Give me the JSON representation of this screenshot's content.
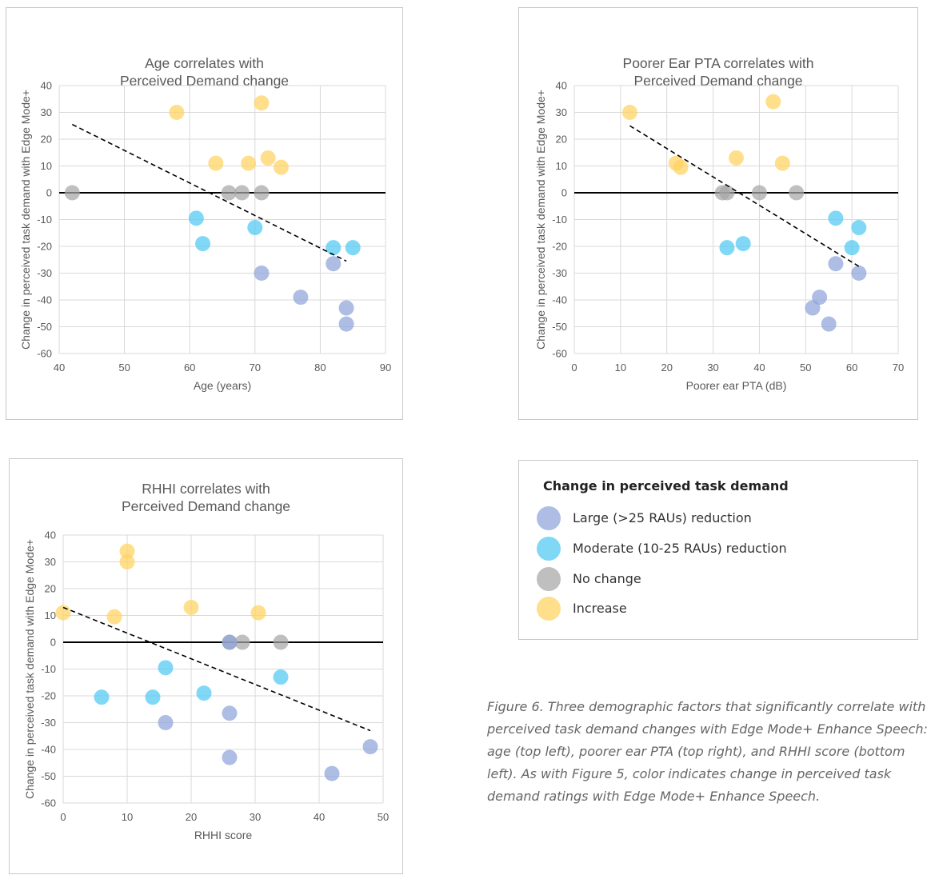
{
  "colors": {
    "large_reduction": "#8EA3D9",
    "moderate_reduction": "#4FC9F2",
    "no_change": "#A6A6A6",
    "increase": "#FFD25F"
  },
  "legend": {
    "title": "Change in perceived task demand",
    "items": [
      {
        "label": "Large (>25 RAUs) reduction",
        "color": "#8EA3D9"
      },
      {
        "label": "Moderate (10-25 RAUs) reduction",
        "color": "#4FC9F2"
      },
      {
        "label": "No change",
        "color": "#A6A6A6"
      },
      {
        "label": "Increase",
        "color": "#FFD25F"
      }
    ]
  },
  "caption": "Figure 6. Three demographic factors that significantly correlate with perceived task demand changes with Edge Mode+ Enhance Speech: age (top left), poorer ear PTA (top right), and RHHI score (bottom left). As with Figure 5, color indicates change in perceived task demand ratings with Edge Mode+ Enhance Speech.",
  "chart_data": [
    {
      "type": "scatter",
      "title_line1": "Age correlates with",
      "title_line2": "Perceived Demand change",
      "xlabel": "Age (years)",
      "ylabel": "Change in perceived task demand with Edge Mode+",
      "xlim": [
        40,
        90
      ],
      "ylim": [
        -60,
        40
      ],
      "xticks": [
        "40",
        "50",
        "60",
        "70",
        "80",
        "90"
      ],
      "yticks": [
        "40",
        "30",
        "20",
        "10",
        "0",
        "-10",
        "-20",
        "-30",
        "-40",
        "-50",
        "-60"
      ],
      "grid": true,
      "zero_line": true,
      "trendline": {
        "x": [
          42,
          84
        ],
        "y": [
          25.5,
          -25.5
        ]
      },
      "series": [
        {
          "category": "increase",
          "x": [
            58,
            71,
            64,
            69,
            72,
            74
          ],
          "y": [
            30,
            33.5,
            11,
            11,
            13,
            9.5
          ]
        },
        {
          "category": "no_change",
          "x": [
            42,
            66,
            68,
            71
          ],
          "y": [
            0,
            0,
            0,
            0
          ]
        },
        {
          "category": "moderate_reduction",
          "x": [
            61,
            62,
            70,
            82,
            85
          ],
          "y": [
            -9.5,
            -19,
            -13,
            -20.5,
            -20.5
          ]
        },
        {
          "category": "large_reduction",
          "x": [
            71,
            77,
            82,
            84,
            84
          ],
          "y": [
            -30,
            -39,
            -26.5,
            -43,
            -49
          ]
        }
      ]
    },
    {
      "type": "scatter",
      "title_line1": "Poorer Ear PTA correlates with",
      "title_line2": "Perceived Demand change",
      "xlabel": "Poorer ear PTA (dB)",
      "ylabel": "Change in perceived task demand with Edge Mode+",
      "xlim": [
        0,
        70
      ],
      "ylim": [
        -60,
        40
      ],
      "xticks": [
        "0",
        "10",
        "20",
        "30",
        "40",
        "50",
        "60",
        "70"
      ],
      "yticks": [
        "40",
        "30",
        "20",
        "10",
        "0",
        "-10",
        "-20",
        "-30",
        "-40",
        "-50",
        "-60"
      ],
      "grid": true,
      "zero_line": true,
      "trendline": {
        "x": [
          12,
          62
        ],
        "y": [
          25,
          -28
        ]
      },
      "series": [
        {
          "category": "increase",
          "x": [
            12,
            22,
            23,
            35,
            43,
            45
          ],
          "y": [
            30,
            11,
            9.5,
            13,
            34,
            11
          ]
        },
        {
          "category": "no_change",
          "x": [
            32,
            33,
            40,
            48
          ],
          "y": [
            0,
            0,
            0,
            0
          ]
        },
        {
          "category": "moderate_reduction",
          "x": [
            33,
            36.5,
            56.5,
            60,
            61.5
          ],
          "y": [
            -20.5,
            -19,
            -9.5,
            -20.5,
            -13
          ]
        },
        {
          "category": "large_reduction",
          "x": [
            51.5,
            53,
            55,
            56.5,
            61.5
          ],
          "y": [
            -43,
            -39,
            -49,
            -26.5,
            -30
          ]
        }
      ]
    },
    {
      "type": "scatter",
      "title_line1": "RHHI correlates with",
      "title_line2": "Perceived Demand change",
      "xlabel": "RHHI score",
      "ylabel": "Change in perceived task demand with Edge Mode+",
      "xlim": [
        0,
        50
      ],
      "ylim": [
        -60,
        40
      ],
      "xticks": [
        "0",
        "10",
        "20",
        "30",
        "40",
        "50"
      ],
      "yticks": [
        "40",
        "30",
        "20",
        "10",
        "0",
        "-10",
        "-20",
        "-30",
        "-40",
        "-50",
        "-60"
      ],
      "grid": true,
      "zero_line": true,
      "trendline": {
        "x": [
          0,
          48
        ],
        "y": [
          13,
          -33
        ]
      },
      "series": [
        {
          "category": "increase",
          "x": [
            0,
            8,
            10,
            10,
            20,
            30.5
          ],
          "y": [
            11,
            9.5,
            30,
            34,
            13,
            11
          ]
        },
        {
          "category": "no_change",
          "x": [
            26,
            28,
            34
          ],
          "y": [
            0,
            0,
            0
          ]
        },
        {
          "category": "moderate_reduction",
          "x": [
            6,
            14,
            16,
            22,
            34
          ],
          "y": [
            -20.5,
            -20.5,
            -9.5,
            -19,
            -13
          ]
        },
        {
          "category": "large_reduction",
          "x": [
            16,
            26,
            26,
            26,
            42,
            48
          ],
          "y": [
            -30,
            -26.5,
            -43,
            0,
            -49,
            -39
          ]
        }
      ]
    }
  ]
}
